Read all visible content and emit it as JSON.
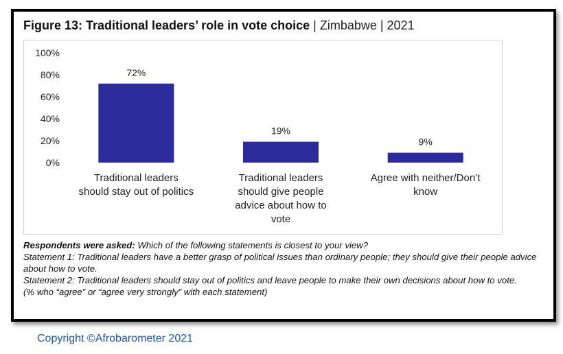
{
  "figure": {
    "title_bold": "Figure 13: Traditional leaders’ role in vote choice",
    "title_sep1": " | ",
    "country": "Zimbabwe",
    "title_sep2": " | ",
    "year": "2021"
  },
  "chart_data": {
    "type": "bar",
    "categories": [
      [
        "Traditional leaders",
        "should stay out of politics"
      ],
      [
        "Traditional leaders",
        "should give people",
        "advice about how to",
        "vote"
      ],
      [
        "Agree with neither/Don’t",
        "know"
      ]
    ],
    "values": [
      72,
      19,
      9
    ],
    "data_labels": [
      "72%",
      "19%",
      "9%"
    ],
    "ylim": [
      0,
      100
    ],
    "yticks": [
      "0%",
      "20%",
      "40%",
      "60%",
      "80%",
      "100%"
    ],
    "ytick_values": [
      0,
      20,
      40,
      60,
      80,
      100
    ],
    "grid": false,
    "bar_color": "#2b2b9c"
  },
  "notes": {
    "question_label": "Respondents were asked:",
    "question_text": " Which of the following statements is closest to your view?",
    "statement1": "Statement 1: Traditional leaders have a better grasp of political issues than ordinary people; they should give their people advice about how to vote.",
    "statement2": "Statement 2: Traditional leaders should stay out of politics and leave people to make their own decisions about how to vote.",
    "footnote": "(% who “agree” or “agree very strongly” with each statement)"
  },
  "copyright": "Copyright ©Afrobarometer 2021"
}
